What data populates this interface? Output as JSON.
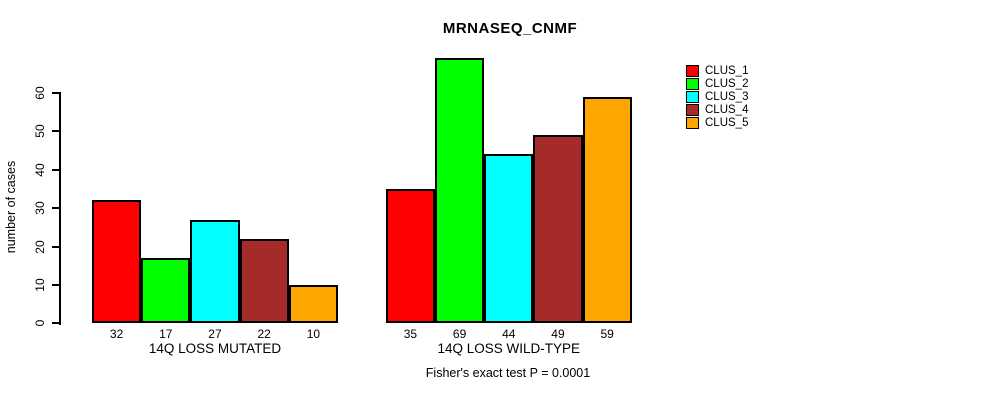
{
  "chart_data": {
    "type": "bar",
    "title": "MRNASEQ_CNMF",
    "ylabel": "number of cases",
    "ylim": [
      0,
      60
    ],
    "yticks": [
      0,
      10,
      20,
      30,
      40,
      50,
      60
    ],
    "grid": false,
    "legend_position": "top-right",
    "clusters": [
      {
        "name": "CLUS_1",
        "color": "#FF0000"
      },
      {
        "name": "CLUS_2",
        "color": "#00FF00"
      },
      {
        "name": "CLUS_3",
        "color": "#00FFFF"
      },
      {
        "name": "CLUS_4",
        "color": "#A52A2A"
      },
      {
        "name": "CLUS_5",
        "color": "#FFA500"
      }
    ],
    "groups": [
      {
        "label": "14Q LOSS MUTATED",
        "values": [
          32,
          17,
          27,
          22,
          10
        ]
      },
      {
        "label": "14Q LOSS WILD-TYPE",
        "values": [
          35,
          69,
          44,
          49,
          59
        ]
      }
    ],
    "bar_value_labels": true,
    "annotation": "Fisher's exact test P = 0.0001"
  }
}
